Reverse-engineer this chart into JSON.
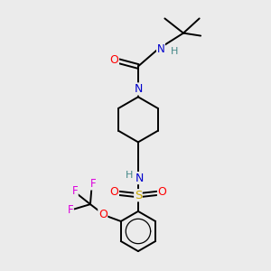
{
  "bg_color": "#ebebeb",
  "atom_colors": {
    "C": "#000000",
    "N": "#0000cc",
    "O": "#ff0000",
    "S": "#ccaa00",
    "F": "#dd00dd",
    "H": "#448888"
  },
  "bond_color": "#000000",
  "bond_width": 1.4,
  "fig_bg": "#ebebeb"
}
